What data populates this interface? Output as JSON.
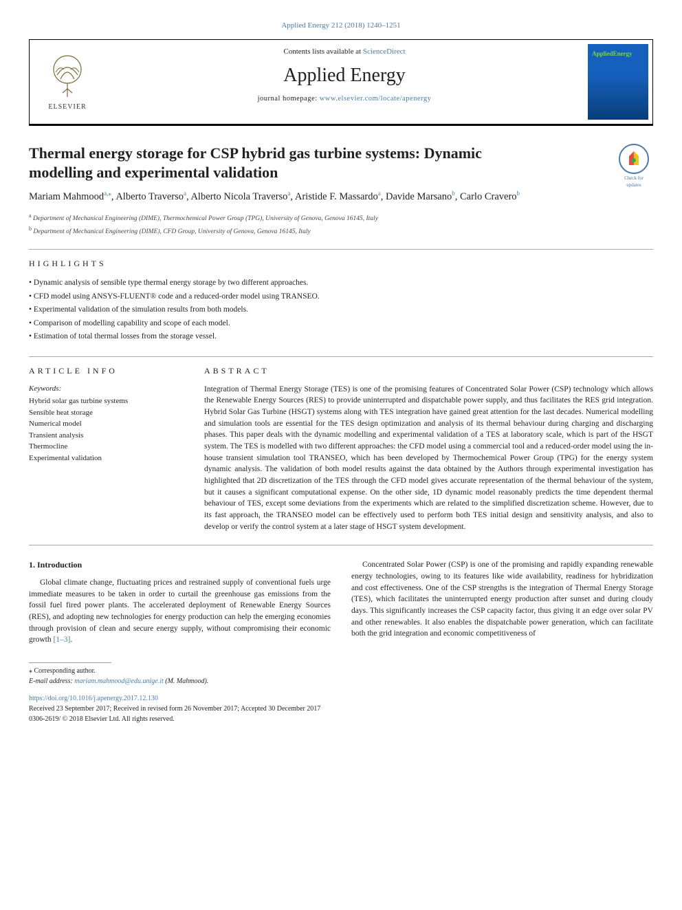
{
  "journal_ref": "Applied Energy 212 (2018) 1240–1251",
  "header": {
    "contents_line_prefix": "Contents lists available at ",
    "contents_line_link": "ScienceDirect",
    "journal_name": "Applied Energy",
    "homepage_prefix": "journal homepage: ",
    "homepage_url": "www.elsevier.com/locate/apenergy",
    "publisher": "ELSEVIER",
    "cover_brand_a": "Applied",
    "cover_brand_b": "Energy"
  },
  "colors": {
    "link": "#4a7aa8",
    "rule": "#000000",
    "light_rule": "#aaaaaa",
    "text": "#222222",
    "cover_top": "#1560bd",
    "cover_bottom": "#0a3d7a",
    "cover_accent": "#7fd14a"
  },
  "badge": {
    "line1": "Check for",
    "line2": "updates"
  },
  "title": "Thermal energy storage for CSP hybrid gas turbine systems: Dynamic modelling and experimental validation",
  "authors_html_parts": [
    {
      "name": "Mariam Mahmood",
      "sup": "a,",
      "star": "⁎"
    },
    {
      "name": "Alberto Traverso",
      "sup": "a"
    },
    {
      "name": "Alberto Nicola Traverso",
      "sup": "a"
    },
    {
      "name": "Aristide F. Massardo",
      "sup": "a"
    },
    {
      "name": "Davide Marsano",
      "sup": "b"
    },
    {
      "name": "Carlo Cravero",
      "sup": "b"
    }
  ],
  "affiliations": [
    {
      "key": "a",
      "text": "Department of Mechanical Engineering (DIME), Thermochemical Power Group (TPG), University of Genova, Genova 16145, Italy"
    },
    {
      "key": "b",
      "text": "Department of Mechanical Engineering (DIME), CFD Group, University of Genova, Genova 16145, Italy"
    }
  ],
  "highlights_label": "HIGHLIGHTS",
  "highlights": [
    "Dynamic analysis of sensible type thermal energy storage by two different approaches.",
    "CFD model using ANSYS-FLUENT® code and a reduced-order model using TRANSEO.",
    "Experimental validation of the simulation results from both models.",
    "Comparison of modelling capability and scope of each model.",
    "Estimation of total thermal losses from the storage vessel."
  ],
  "article_info_label": "ARTICLE INFO",
  "keywords_header": "Keywords:",
  "keywords": [
    "Hybrid solar gas turbine systems",
    "Sensible heat storage",
    "Numerical model",
    "Transient analysis",
    "Thermocline",
    "Experimental validation"
  ],
  "abstract_label": "ABSTRACT",
  "abstract": "Integration of Thermal Energy Storage (TES) is one of the promising features of Concentrated Solar Power (CSP) technology which allows the Renewable Energy Sources (RES) to provide uninterrupted and dispatchable power supply, and thus facilitates the RES grid integration. Hybrid Solar Gas Turbine (HSGT) systems along with TES integration have gained great attention for the last decades. Numerical modelling and simulation tools are essential for the TES design optimization and analysis of its thermal behaviour during charging and discharging phases. This paper deals with the dynamic modelling and experimental validation of a TES at laboratory scale, which is part of the HSGT system. The TES is modelled with two different approaches: the CFD model using a commercial tool and a reduced-order model using the in-house transient simulation tool TRANSEO, which has been developed by Thermochemical Power Group (TPG) for the energy system dynamic analysis. The validation of both model results against the data obtained by the Authors through experimental investigation has highlighted that 2D discretization of the TES through the CFD model gives accurate representation of the thermal behaviour of the system, but it causes a significant computational expense. On the other side, 1D dynamic model reasonably predicts the time dependent thermal behaviour of TES, except some deviations from the experiments which are related to the simplified discretization scheme. However, due to its fast approach, the TRANSEO model can be effectively used to perform both TES initial design and sensitivity analysis, and also to develop or verify the control system at a later stage of HSGT system development.",
  "intro": {
    "heading": "1. Introduction",
    "left": "Global climate change, fluctuating prices and restrained supply of conventional fuels urge immediate measures to be taken in order to curtail the greenhouse gas emissions from the fossil fuel fired power plants. The accelerated deployment of Renewable Energy Sources (RES), and adopting new technologies for energy production can help the emerging economies through provision of clean and secure energy supply, without compromising their economic growth ",
    "left_ref": "[1–3]",
    "left_after": ".",
    "right": "Concentrated Solar Power (CSP) is one of the promising and rapidly expanding renewable energy technologies, owing to its features like wide availability, readiness for hybridization and cost effectiveness. One of the CSP strengths is the integration of Thermal Energy Storage (TES), which facilitates the uninterrupted energy production after sunset and during cloudy days. This significantly increases the CSP capacity factor, thus giving it an edge over solar PV and other renewables. It also enables the dispatchable power generation, which can facilitate both the grid integration and economic competitiveness of"
  },
  "footer": {
    "corr": "⁎ Corresponding author.",
    "email_label": "E-mail address: ",
    "email": "mariam.mahmood@edu.unige.it",
    "email_suffix": " (M. Mahmood).",
    "doi": "https://doi.org/10.1016/j.apenergy.2017.12.130",
    "history": "Received 23 September 2017; Received in revised form 26 November 2017; Accepted 30 December 2017",
    "copyright": "0306-2619/ © 2018 Elsevier Ltd. All rights reserved."
  }
}
